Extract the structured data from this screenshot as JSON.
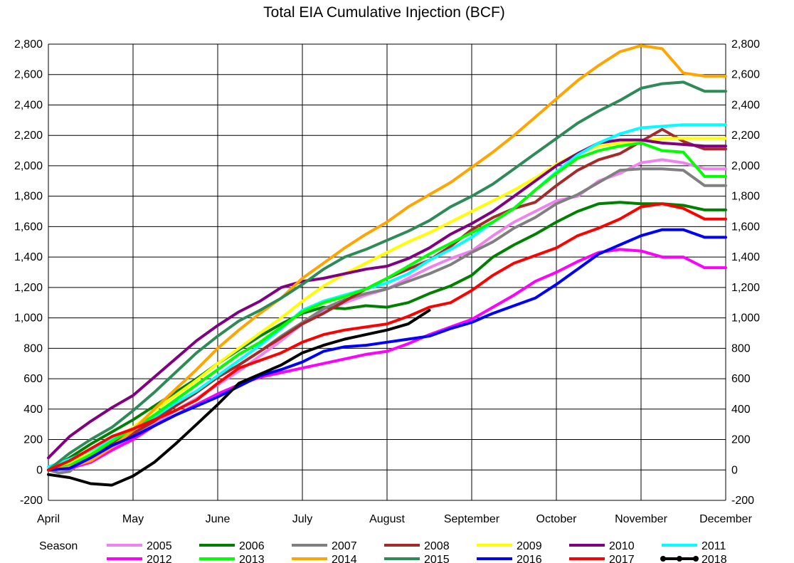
{
  "chart_data": {
    "type": "line",
    "title": "Total EIA Cumulative Injection (BCF)",
    "xlabel": "",
    "ylabel": "",
    "x_ticks": [
      "April",
      "May",
      "June",
      "July",
      "August",
      "September",
      "October",
      "November",
      "December"
    ],
    "xlim": [
      0,
      8
    ],
    "ylim": [
      -200,
      2800
    ],
    "y_ticks": [
      -200,
      0,
      200,
      400,
      600,
      800,
      1000,
      1200,
      1400,
      1600,
      1800,
      2000,
      2200,
      2400,
      2600,
      2800
    ],
    "y_tick_labels": [
      "-200",
      "0",
      "200",
      "400",
      "600",
      "800",
      "1,000",
      "1,200",
      "1,400",
      "1,600",
      "1,800",
      "2,000",
      "2,200",
      "2,400",
      "2,600",
      "2,800"
    ],
    "grid": true,
    "legend_position": "bottom",
    "legend_title": "Season",
    "series": [
      {
        "name": "2005",
        "color": "#ee82ee",
        "x": [
          0,
          0.25,
          0.5,
          0.75,
          1,
          1.25,
          1.5,
          1.75,
          2,
          2.25,
          2.5,
          2.75,
          3,
          3.25,
          3.5,
          3.75,
          4,
          4.25,
          4.5,
          4.75,
          5,
          5.25,
          5.5,
          5.75,
          6,
          6.25,
          6.5,
          6.75,
          7,
          7.25,
          7.5,
          7.75,
          8
        ],
        "y": [
          0,
          30,
          80,
          140,
          220,
          300,
          390,
          470,
          560,
          650,
          750,
          850,
          960,
          1040,
          1100,
          1150,
          1190,
          1260,
          1330,
          1390,
          1440,
          1540,
          1630,
          1700,
          1770,
          1800,
          1900,
          1950,
          2020,
          2040,
          2020,
          1980,
          1980
        ]
      },
      {
        "name": "2006",
        "color": "#008000",
        "x": [
          0,
          0.25,
          0.5,
          0.75,
          1,
          1.25,
          1.5,
          1.75,
          2,
          2.25,
          2.5,
          2.75,
          3,
          3.25,
          3.5,
          3.75,
          4,
          4.25,
          4.5,
          4.75,
          5,
          5.25,
          5.5,
          5.75,
          6,
          6.25,
          6.5,
          6.75,
          7,
          7.25,
          7.5,
          7.75,
          8
        ],
        "y": [
          0,
          80,
          170,
          250,
          330,
          420,
          510,
          600,
          700,
          790,
          880,
          960,
          1030,
          1070,
          1060,
          1080,
          1070,
          1100,
          1160,
          1210,
          1280,
          1400,
          1480,
          1550,
          1630,
          1700,
          1750,
          1760,
          1750,
          1750,
          1740,
          1710,
          1710
        ]
      },
      {
        "name": "2007",
        "color": "#808080",
        "x": [
          0,
          0.125,
          0.25,
          0.5,
          0.75,
          1,
          1.25,
          1.5,
          1.75,
          2,
          2.25,
          2.5,
          2.75,
          3,
          3.25,
          3.5,
          3.75,
          4,
          4.25,
          4.5,
          4.75,
          5,
          5.25,
          5.5,
          5.75,
          6,
          6.25,
          6.5,
          6.75,
          7,
          7.25,
          7.5,
          7.75,
          8
        ],
        "y": [
          0,
          -20,
          -10,
          100,
          170,
          240,
          330,
          420,
          510,
          610,
          690,
          780,
          880,
          970,
          1060,
          1120,
          1160,
          1190,
          1240,
          1290,
          1350,
          1430,
          1500,
          1590,
          1660,
          1750,
          1810,
          1890,
          1970,
          1980,
          1980,
          1970,
          1870,
          1870
        ]
      },
      {
        "name": "2008",
        "color": "#a52a2a",
        "x": [
          0,
          0.25,
          0.5,
          0.75,
          1,
          1.25,
          1.5,
          1.75,
          2,
          2.25,
          2.5,
          2.75,
          3,
          3.25,
          3.5,
          3.75,
          4,
          4.25,
          4.5,
          4.75,
          5,
          5.25,
          5.5,
          5.75,
          6,
          6.25,
          6.5,
          6.75,
          7,
          7.25,
          7.5,
          7.75,
          8
        ],
        "y": [
          0,
          40,
          110,
          180,
          240,
          320,
          420,
          510,
          610,
          690,
          780,
          870,
          960,
          1030,
          1110,
          1190,
          1260,
          1320,
          1380,
          1470,
          1580,
          1660,
          1720,
          1760,
          1870,
          1970,
          2040,
          2080,
          2160,
          2240,
          2160,
          2110,
          2110
        ]
      },
      {
        "name": "2009",
        "color": "#ffff00",
        "x": [
          0,
          0.25,
          0.5,
          0.75,
          1,
          1.25,
          1.5,
          1.75,
          2,
          2.25,
          2.5,
          2.75,
          3,
          3.25,
          3.5,
          3.75,
          4,
          4.25,
          4.5,
          4.75,
          5,
          5.25,
          5.5,
          5.75,
          6,
          6.25,
          6.5,
          6.75,
          7,
          7.25,
          7.5,
          7.75,
          8
        ],
        "y": [
          0,
          50,
          120,
          190,
          280,
          390,
          490,
          590,
          700,
          800,
          900,
          1000,
          1110,
          1210,
          1290,
          1360,
          1430,
          1500,
          1560,
          1630,
          1700,
          1770,
          1840,
          1920,
          2010,
          2080,
          2130,
          2150,
          2160,
          2180,
          2180,
          2180,
          2180
        ]
      },
      {
        "name": "2010",
        "color": "#800080",
        "x": [
          0,
          0.125,
          0.25,
          0.5,
          0.75,
          1,
          1.25,
          1.5,
          1.75,
          2,
          2.25,
          2.5,
          2.75,
          3,
          3.25,
          3.5,
          3.75,
          4,
          4.25,
          4.5,
          4.75,
          5,
          5.25,
          5.5,
          5.75,
          6,
          6.25,
          6.5,
          6.75,
          7,
          7.25,
          7.5,
          7.75,
          8
        ],
        "y": [
          80,
          150,
          220,
          320,
          410,
          490,
          610,
          730,
          850,
          950,
          1040,
          1110,
          1200,
          1240,
          1260,
          1290,
          1320,
          1340,
          1390,
          1460,
          1550,
          1620,
          1700,
          1800,
          1900,
          2000,
          2080,
          2150,
          2170,
          2170,
          2150,
          2140,
          2130,
          2130
        ]
      },
      {
        "name": "2011",
        "color": "#00ffff",
        "x": [
          0,
          0.25,
          0.5,
          0.75,
          1,
          1.25,
          1.5,
          1.75,
          2,
          2.25,
          2.5,
          2.75,
          3,
          3.25,
          3.5,
          3.75,
          4,
          4.25,
          4.5,
          4.75,
          5,
          5.25,
          5.5,
          5.75,
          6,
          6.25,
          6.5,
          6.75,
          7,
          7.25,
          7.5,
          7.75,
          8
        ],
        "y": [
          20,
          70,
          130,
          200,
          270,
          350,
          440,
          520,
          620,
          720,
          820,
          930,
          1050,
          1110,
          1150,
          1190,
          1230,
          1290,
          1380,
          1450,
          1530,
          1630,
          1720,
          1840,
          1960,
          2070,
          2150,
          2210,
          2250,
          2260,
          2270,
          2270,
          2270
        ]
      },
      {
        "name": "2012",
        "color": "#ff00ff",
        "x": [
          0,
          0.25,
          0.5,
          0.75,
          1,
          1.25,
          1.5,
          1.75,
          2,
          2.25,
          2.5,
          2.75,
          3,
          3.25,
          3.5,
          3.75,
          4,
          4.25,
          4.5,
          4.75,
          5,
          5.25,
          5.5,
          5.75,
          6,
          6.25,
          6.5,
          6.75,
          7,
          7.25,
          7.5,
          7.75,
          8
        ],
        "y": [
          0,
          10,
          50,
          130,
          200,
          290,
          360,
          430,
          500,
          560,
          610,
          640,
          670,
          700,
          730,
          760,
          780,
          830,
          890,
          940,
          990,
          1070,
          1150,
          1240,
          1300,
          1370,
          1430,
          1450,
          1440,
          1400,
          1400,
          1330,
          1330
        ]
      },
      {
        "name": "2013",
        "color": "#00ff00",
        "x": [
          0,
          0.25,
          0.5,
          0.75,
          1,
          1.25,
          1.5,
          1.75,
          2,
          2.25,
          2.5,
          2.75,
          3,
          3.25,
          3.5,
          3.75,
          4,
          4.25,
          4.5,
          4.75,
          5,
          5.25,
          5.5,
          5.75,
          6,
          6.25,
          6.5,
          6.75,
          7,
          7.25,
          7.5,
          7.75,
          8
        ],
        "y": [
          0,
          30,
          100,
          190,
          270,
          360,
          460,
          560,
          660,
          760,
          840,
          940,
          1040,
          1100,
          1140,
          1190,
          1260,
          1340,
          1420,
          1490,
          1560,
          1630,
          1720,
          1840,
          1950,
          2050,
          2100,
          2130,
          2150,
          2100,
          2090,
          1930,
          1930
        ]
      },
      {
        "name": "2014",
        "color": "#ffa500",
        "x": [
          0,
          0.25,
          0.5,
          0.75,
          1,
          1.25,
          1.5,
          1.75,
          2,
          2.25,
          2.5,
          2.75,
          3,
          3.25,
          3.5,
          3.75,
          4,
          4.25,
          4.5,
          4.75,
          5,
          5.25,
          5.5,
          5.75,
          6,
          6.25,
          6.5,
          6.75,
          7,
          7.25,
          7.5,
          7.75,
          8
        ],
        "y": [
          0,
          20,
          60,
          150,
          260,
          400,
          530,
          660,
          800,
          920,
          1030,
          1130,
          1260,
          1360,
          1460,
          1550,
          1630,
          1730,
          1810,
          1890,
          1990,
          2090,
          2200,
          2320,
          2440,
          2560,
          2660,
          2750,
          2790,
          2770,
          2610,
          2590,
          2590
        ]
      },
      {
        "name": "2015",
        "color": "#2e8b57",
        "x": [
          0,
          0.25,
          0.5,
          0.75,
          1,
          1.25,
          1.5,
          1.75,
          2,
          2.25,
          2.5,
          2.75,
          3,
          3.25,
          3.5,
          3.75,
          4,
          4.25,
          4.5,
          4.75,
          5,
          5.25,
          5.5,
          5.75,
          6,
          6.25,
          6.5,
          6.75,
          7,
          7.25,
          7.5,
          7.75,
          8
        ],
        "y": [
          0,
          110,
          200,
          280,
          390,
          510,
          640,
          770,
          880,
          980,
          1050,
          1130,
          1220,
          1320,
          1400,
          1450,
          1510,
          1570,
          1640,
          1730,
          1800,
          1880,
          1980,
          2080,
          2180,
          2280,
          2360,
          2430,
          2510,
          2540,
          2550,
          2490,
          2490
        ]
      },
      {
        "name": "2016",
        "color": "#0000ff",
        "x": [
          0,
          0.25,
          0.5,
          0.75,
          1,
          1.25,
          1.5,
          1.75,
          2,
          2.25,
          2.5,
          2.75,
          3,
          3.25,
          3.5,
          3.75,
          4,
          4.25,
          4.5,
          4.75,
          5,
          5.25,
          5.5,
          5.75,
          6,
          6.25,
          6.5,
          6.75,
          7,
          7.25,
          7.5,
          7.75,
          8
        ],
        "y": [
          0,
          10,
          80,
          160,
          220,
          290,
          360,
          420,
          480,
          550,
          620,
          660,
          710,
          780,
          810,
          820,
          840,
          860,
          880,
          930,
          970,
          1030,
          1080,
          1130,
          1220,
          1320,
          1420,
          1480,
          1540,
          1580,
          1580,
          1530,
          1530
        ]
      },
      {
        "name": "2017",
        "color": "#ff0000",
        "x": [
          0,
          0.25,
          0.5,
          0.75,
          1,
          1.25,
          1.5,
          1.75,
          2,
          2.25,
          2.5,
          2.75,
          3,
          3.25,
          3.5,
          3.75,
          4,
          4.25,
          4.5,
          4.75,
          5,
          5.25,
          5.5,
          5.75,
          6,
          6.25,
          6.5,
          6.75,
          7,
          7.25,
          7.5,
          7.75,
          8
        ],
        "y": [
          0,
          60,
          140,
          220,
          270,
          330,
          390,
          460,
          570,
          670,
          720,
          770,
          840,
          890,
          920,
          940,
          960,
          1010,
          1070,
          1100,
          1180,
          1280,
          1360,
          1410,
          1460,
          1540,
          1590,
          1650,
          1730,
          1750,
          1720,
          1650,
          1650
        ]
      },
      {
        "name": "2018",
        "color": "#000000",
        "x": [
          0,
          0.25,
          0.5,
          0.75,
          1,
          1.25,
          1.5,
          1.75,
          2,
          2.25,
          2.5,
          2.75,
          3,
          3.25,
          3.5,
          3.75,
          4,
          4.25,
          4.5
        ],
        "y": [
          -30,
          -50,
          -90,
          -100,
          -40,
          50,
          170,
          300,
          430,
          570,
          630,
          690,
          770,
          820,
          860,
          890,
          920,
          960,
          1050
        ]
      }
    ]
  }
}
